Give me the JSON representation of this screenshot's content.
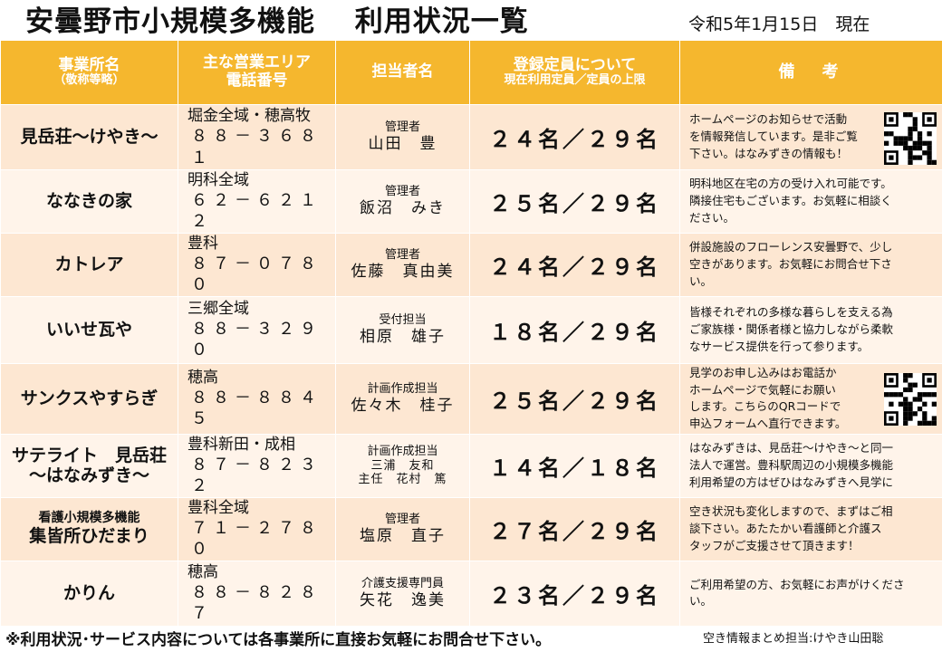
{
  "title": "安曇野市小規模多機能　 利用状況一覧",
  "date": "令和5年1月15日　現在",
  "colors": {
    "header_bg": "#f5b72e",
    "row_odd": "#fde7d2",
    "row_even": "#fff4ea"
  },
  "headers": {
    "name": [
      "事業所名",
      "（敬称等略）"
    ],
    "area": [
      "主な営業エリア",
      "電話番号"
    ],
    "staff": "担当者名",
    "capacity": [
      "登録定員について",
      "現在利用定員／定員の上限"
    ],
    "notes": "備　考"
  },
  "rows": [
    {
      "name": [
        "見岳荘～けやき～"
      ],
      "area": "堀金全域・穂高牧",
      "tel": "８８－３６８１",
      "role": "管理者",
      "person": "山田　豊",
      "capacity": "２４名／２９名",
      "notes": [
        "ホームページのお知らせで活動",
        "を情報発信しています。是非ご覧",
        "下さい。はなみずきの情報も！"
      ],
      "qr": "qr-code-icon"
    },
    {
      "name": [
        "ななきの家"
      ],
      "area": "明科全域",
      "tel": "６２－６２１２",
      "role": "管理者",
      "person": "飯沼　みき",
      "capacity": "２５名／２９名",
      "notes": [
        "明科地区在宅の方の受け入れ可能です。",
        "隣接住宅もございます。お気軽に相談く",
        "ださい。"
      ]
    },
    {
      "name": [
        "カトレア"
      ],
      "area": "豊科",
      "tel": "８７－０７８０",
      "role": "管理者",
      "person": "佐藤　真由美",
      "capacity": "２４名／２９名",
      "notes": [
        "併設施設のフローレンス安曇野で、少し",
        "空きがあります。お気軽にお問合せ下さ",
        "い。"
      ]
    },
    {
      "name": [
        "いいせ瓦や"
      ],
      "area": "三郷全域",
      "tel": "８８－３２９０",
      "role": "受付担当",
      "person": "相原　雄子",
      "capacity": "１８名／２９名",
      "notes": [
        "皆様それぞれの多様な暮らしを支える為",
        "ご家族様・関係者様と協力しながら柔軟",
        "なサービス提供を行って参ります。"
      ]
    },
    {
      "name": [
        "サンクスやすらぎ"
      ],
      "area": "穂高",
      "tel": "８８－８８４５",
      "role": "計画作成担当",
      "person": "佐々木　桂子",
      "capacity": "２５名／２９名",
      "notes": [
        "見学のお申し込みはお電話か",
        "ホームページで気軽にお願い",
        "します。こちらのQRコードで",
        "申込フォームへ直行できます。"
      ],
      "qr": "qr-code-icon"
    },
    {
      "name": [
        "サテライト　見岳荘",
        "～はなみずき～"
      ],
      "area": "豊科新田・成相",
      "tel": "８７－８２３２",
      "role": "計画作成担当",
      "person_lines": [
        "三浦　友和",
        "主任　花村　篤"
      ],
      "capacity": "１４名／１８名",
      "notes": [
        "はなみずきは、見岳荘～けやき～と同一",
        "法人で運営。豊科駅周辺の小規模多機能",
        "利用希望の方はぜひはなみずきへ見学に"
      ]
    },
    {
      "name_small": "看護小規模多機能",
      "name": [
        "集皆所ひだまり"
      ],
      "area": "豊科全域",
      "tel": "７１－２７８０",
      "role": "管理者",
      "person": "塩原　直子",
      "capacity": "２７名／２９名",
      "notes": [
        "空き状況も変化しますので、まずはご相",
        "談下さい。あたたかい看護師と介護ス",
        "タッフがご支援させて頂きます！"
      ]
    },
    {
      "name": [
        "かりん"
      ],
      "area": "穂高",
      "tel": "８８－８２８７",
      "role": "介護支援専門員",
      "person": "矢花　逸美",
      "capacity": "２３名／２９名",
      "notes": [
        "ご利用希望の方、お気軽にお声がけくださ",
        "い。"
      ]
    }
  ],
  "footer": "※利用状況･サービス内容については各事業所に直接お気軽にお問合せ下さい。",
  "footer_right": "空き情報まとめ担当:けやき山田聡"
}
